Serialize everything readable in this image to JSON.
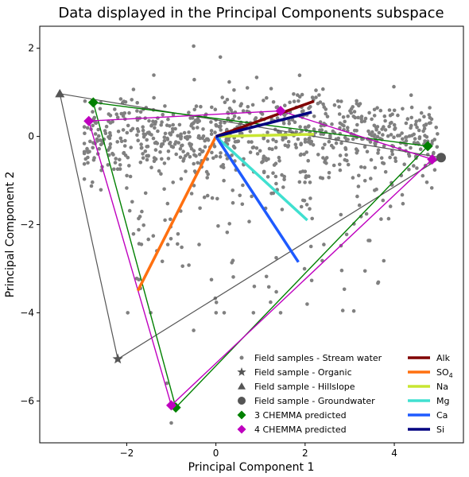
{
  "chart_data": {
    "type": "scatter",
    "title": "Data displayed in the Principal Components subspace",
    "xlabel": "Principal Component 1",
    "ylabel": "Principal Component 2",
    "xlim": [
      -3.95,
      5.55
    ],
    "ylim": [
      -6.95,
      2.5
    ],
    "xticks": [
      -2,
      0,
      2,
      4
    ],
    "yticks": [
      2,
      0,
      -2,
      -4,
      -6
    ],
    "grid": false,
    "legend_placement": "lower-right",
    "legend": [
      {
        "label": "Field samples - Stream water",
        "marker": "point",
        "color": "#808080"
      },
      {
        "label": "Field sample - Organic",
        "marker": "star",
        "color": "#555555"
      },
      {
        "label": "Field sample - Hillslope",
        "marker": "triangle",
        "color": "#555555"
      },
      {
        "label": "Field sample - Groundwater",
        "marker": "circle",
        "color": "#555555"
      },
      {
        "label": "3 CHEMMA predicted",
        "marker": "diamond",
        "color": "#008000"
      },
      {
        "label": "4 CHEMMA predicted",
        "marker": "diamond",
        "color": "#bf00bf"
      }
    ],
    "loadings": [
      {
        "label": "Alk",
        "color": "#800000",
        "end": [
          2.2,
          0.8
        ]
      },
      {
        "label": "SO",
        "sub": "4",
        "color": "#ff7010",
        "end": [
          -1.75,
          -3.5
        ]
      },
      {
        "label": "Na",
        "color": "#c8e632",
        "end": [
          2.2,
          0.05
        ]
      },
      {
        "label": "Mg",
        "color": "#40e0d0",
        "end": [
          2.05,
          -1.9
        ]
      },
      {
        "label": "Ca",
        "color": "#1e5aff",
        "end": [
          1.85,
          -2.85
        ]
      },
      {
        "label": "Si",
        "color": "#000080",
        "end": [
          2.15,
          0.55
        ]
      }
    ],
    "end_members": {
      "organic": [
        -2.2,
        -5.05
      ],
      "hillslope": [
        -3.5,
        0.97
      ],
      "groundwater": [
        5.05,
        -0.48
      ]
    },
    "chemma3": [
      [
        -2.75,
        0.77
      ],
      [
        4.75,
        -0.22
      ],
      [
        -0.9,
        -6.15
      ]
    ],
    "chemma4": [
      [
        -2.85,
        0.35
      ],
      [
        1.45,
        0.58
      ],
      [
        4.85,
        -0.52
      ],
      [
        -1.0,
        -6.1
      ]
    ],
    "stream_water": {
      "count": 900,
      "seed": 7,
      "note_extra": [
        [
          -0.5,
          2.05
        ],
        [
          0.1,
          1.8
        ],
        [
          -1.1,
          -5.6
        ],
        [
          -1.0,
          -6.5
        ],
        [
          -0.5,
          -4.4
        ],
        [
          1.45,
          -4.0
        ],
        [
          3.6,
          -1.2
        ],
        [
          4.8,
          -0.6
        ],
        [
          3.95,
          -1.1
        ],
        [
          -0.1,
          -3.25
        ]
      ]
    }
  }
}
